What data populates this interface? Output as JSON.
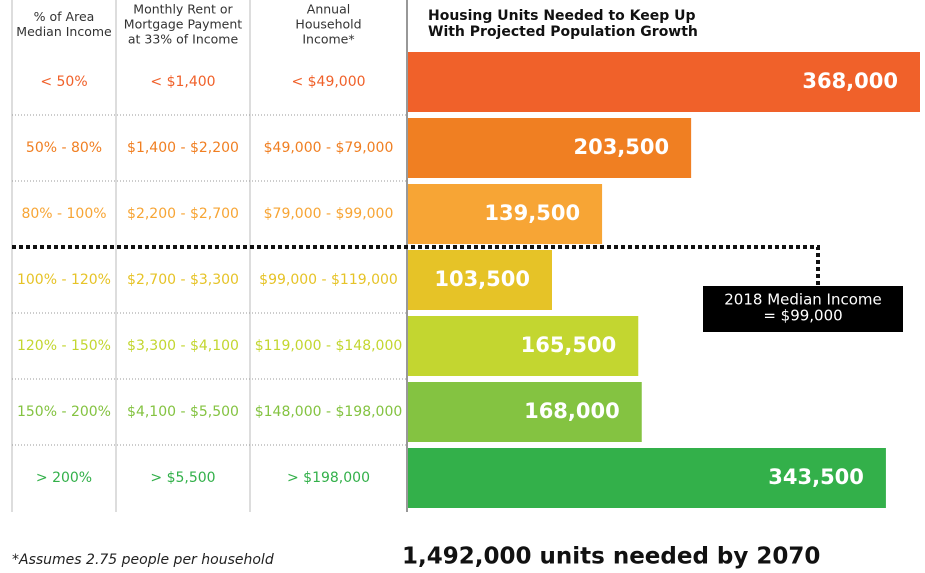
{
  "chart_data": {
    "type": "bar",
    "title": [
      "Housing Units Needed to Keep Up",
      "With Projected Population Growth"
    ],
    "values": [
      368000,
      203500,
      139500,
      103500,
      165500,
      168000,
      343500
    ],
    "value_labels": [
      "368,000",
      "203,500",
      "139,500",
      "103,500",
      "165,500",
      "168,000",
      "343,500"
    ],
    "colors": [
      "#f0612a",
      "#f07f22",
      "#f7a535",
      "#e6c327",
      "#c3d630",
      "#84c341",
      "#33b04a"
    ],
    "annotation": [
      "2018 Median Income",
      "= $99,000"
    ]
  },
  "table": {
    "headers": [
      [
        "% of Area",
        "Median Income"
      ],
      [
        "Monthly Rent or",
        "Mortgage Payment",
        "at 33% of Income"
      ],
      [
        "Annual",
        "Household",
        "Income*"
      ]
    ],
    "rows": [
      [
        "< 50%",
        "< $1,400",
        "< $49,000"
      ],
      [
        "50% - 80%",
        "$1,400 - $2,200",
        "$49,000 - $79,000"
      ],
      [
        "80% - 100%",
        "$2,200 - $2,700",
        "$79,000 - $99,000"
      ],
      [
        "100% - 120%",
        "$2,700 - $3,300",
        "$99,000 - $119,000"
      ],
      [
        "120% - 150%",
        "$3,300 - $4,100",
        "$119,000 - $148,000"
      ],
      [
        "150% - 200%",
        "$4,100 - $5,500",
        "$148,000 - $198,000"
      ],
      [
        "> 200%",
        "> $5,500",
        "> $198,000"
      ]
    ]
  },
  "footnote": "*Assumes 2.75 people per household",
  "total": "1,492,000 units needed by 2070"
}
